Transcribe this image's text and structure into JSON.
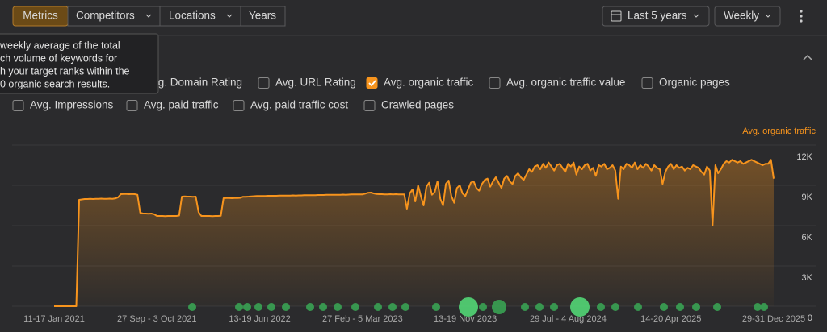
{
  "toolbar": {
    "tabs": [
      "Metrics",
      "Competitors",
      "Locations",
      "Years"
    ],
    "period": "Last 5 years",
    "interval": "Weekly"
  },
  "tooltip": [
    "weekly average of the total",
    "ch volume of keywords for",
    "h your target ranks within the",
    "0 organic search results."
  ],
  "metrics": [
    {
      "label": "vg. Domain Rating",
      "checked": false
    },
    {
      "label": "Avg. URL Rating",
      "checked": false
    },
    {
      "label": "Avg. organic traffic",
      "checked": true
    },
    {
      "label": "Avg. organic traffic value",
      "checked": false
    },
    {
      "label": "Organic pages",
      "checked": false
    },
    {
      "label": "Avg. Impressions",
      "checked": false
    },
    {
      "label": "Avg. paid traffic",
      "checked": false
    },
    {
      "label": "Avg. paid traffic cost",
      "checked": false
    },
    {
      "label": "Crawled pages",
      "checked": false
    }
  ],
  "chart_data": {
    "type": "line",
    "y_label": "Avg. organic traffic",
    "color": "#f7941d",
    "grid": true,
    "ylim": [
      0,
      12000
    ],
    "yticks": [
      0,
      {
        "value": 3000,
        "label": "3K"
      },
      {
        "value": 6000,
        "label": "6K"
      },
      {
        "value": 9000,
        "label": "9K"
      },
      {
        "value": 12000,
        "label": "12K"
      }
    ],
    "categories": [
      "11-17 Jan 2021",
      null,
      null,
      null,
      null,
      null,
      null,
      null,
      null,
      null,
      null,
      null,
      null,
      null,
      null,
      null,
      null,
      null,
      null,
      null,
      null,
      null,
      null,
      null,
      null,
      null,
      null,
      null,
      null,
      null,
      null,
      null,
      null,
      null,
      null,
      null,
      null,
      "27 Sep - 3 Oct 2021",
      null,
      null,
      null,
      null,
      null,
      null,
      null,
      null,
      null,
      null,
      null,
      null,
      null,
      null,
      null,
      null,
      null,
      null,
      null,
      null,
      null,
      null,
      null,
      null,
      null,
      null,
      null,
      null,
      null,
      null,
      null,
      null,
      null,
      null,
      null,
      null,
      "13-19 Jun 2022",
      null,
      null,
      null,
      null,
      null,
      null,
      null,
      null,
      null,
      null,
      null,
      null,
      null,
      null,
      null,
      null,
      null,
      null,
      null,
      null,
      null,
      null,
      null,
      null,
      null,
      null,
      null,
      null,
      null,
      null,
      null,
      null,
      null,
      null,
      null,
      null,
      "27 Feb - 5 Mar 2023",
      null,
      null,
      null,
      null,
      null,
      null,
      null,
      null,
      null,
      null,
      null,
      null,
      null,
      null,
      null,
      null,
      null,
      null,
      null,
      null,
      null,
      null,
      null,
      null,
      null,
      null,
      null,
      null,
      null,
      null,
      null,
      null,
      null,
      null,
      null,
      null,
      "13-19 Nov 2023",
      null,
      null,
      null,
      null,
      null,
      null,
      null,
      null,
      null,
      null,
      null,
      null,
      null,
      null,
      null,
      null,
      null,
      null,
      null,
      null,
      null,
      null,
      null,
      null,
      null,
      null,
      null,
      null,
      null,
      null,
      null,
      null,
      null,
      null,
      null,
      null,
      "29 Jul - 4 Aug 2024",
      null,
      null,
      null,
      null,
      null,
      null,
      null,
      null,
      null,
      null,
      null,
      null,
      null,
      null,
      null,
      null,
      null,
      null,
      null,
      null,
      null,
      null,
      null,
      null,
      null,
      null,
      null,
      null,
      null,
      null,
      null,
      null,
      null,
      null,
      null,
      null,
      "14-20 Apr 2025",
      null,
      null,
      null,
      null,
      null,
      null,
      null,
      null,
      null,
      null,
      null,
      null,
      null,
      null,
      null,
      null,
      null,
      null,
      null,
      null,
      null,
      null,
      null,
      null,
      null,
      null,
      null,
      null,
      null,
      null,
      null,
      null,
      null,
      null,
      null,
      null,
      "29-31 Dec 2025"
    ],
    "values": [
      0,
      0,
      0,
      0,
      0,
      0,
      0,
      0,
      0,
      7920,
      7950,
      7980,
      7980,
      8000,
      7980,
      7990,
      8000,
      8010,
      7990,
      8000,
      8010,
      8000,
      8020,
      8100,
      8340,
      8350,
      8360,
      8340,
      8350,
      8340,
      8300,
      6960,
      6900,
      6900,
      6880,
      6900,
      6850,
      6720,
      6720,
      6720,
      6710,
      6720,
      6720,
      6720,
      6720,
      6750,
      8160,
      8170,
      8160,
      8160,
      8150,
      8160,
      7000,
      6720,
      6720,
      6720,
      6720,
      6710,
      6720,
      6720,
      6730,
      8040,
      8050,
      8060,
      8040,
      8050,
      8060,
      8070,
      8150,
      8150,
      8160,
      8180,
      8190,
      8200,
      8200,
      8210,
      8210,
      8220,
      8220,
      8220,
      8220,
      8230,
      8230,
      8230,
      8240,
      8240,
      8250,
      8240,
      8250,
      8250,
      8260,
      8260,
      8260,
      8270,
      8270,
      8280,
      8280,
      8280,
      8290,
      8290,
      8290,
      8300,
      8300,
      8300,
      8310,
      8300,
      8310,
      8320,
      8320,
      8320,
      8330,
      8330,
      8380,
      8450,
      8460,
      8400,
      8350,
      8340,
      8340,
      8330,
      8330,
      8340,
      8330,
      8340,
      8330,
      8320,
      8330,
      7260,
      8400,
      8700,
      7800,
      9000,
      8200,
      7500,
      8900,
      9200,
      8300,
      8500,
      9300,
      8000,
      7500,
      9100,
      9360,
      8200,
      7700,
      8800,
      9000,
      8400,
      8200,
      8700,
      9200,
      9300,
      8800,
      8600,
      9100,
      9400,
      9500,
      8900,
      9300,
      9600,
      9200,
      8800,
      9500,
      9700,
      9300,
      9100,
      9700,
      9900,
      9600,
      9400,
      9800,
      10200,
      10000,
      10400,
      10500,
      10200,
      10600,
      10300,
      10700,
      10400,
      10100,
      10500,
      10600,
      10300,
      10000,
      10600,
      10400,
      10700,
      9800,
      10400,
      10200,
      10500,
      10600,
      10100,
      10300,
      9700,
      10500,
      10400,
      10600,
      10200,
      10300,
      10500,
      10100,
      8000,
      10400,
      10200,
      10600,
      10500,
      10300,
      10700,
      10200,
      10500,
      10300,
      10600,
      10400,
      10100,
      10500,
      10300,
      10200,
      9100,
      10000,
      10400,
      10600,
      10200,
      10500,
      10300,
      10400,
      10100,
      10300,
      10200,
      10500,
      10400,
      10300,
      10000,
      9800,
      10400,
      10100,
      6000,
      10500,
      9900,
      10200,
      10600,
      10800,
      10700,
      10900,
      10800,
      10700,
      10800,
      10600,
      10700,
      10800,
      10900,
      10800,
      10700,
      10600,
      10500,
      10600,
      10600,
      10900,
      9500
    ]
  }
}
